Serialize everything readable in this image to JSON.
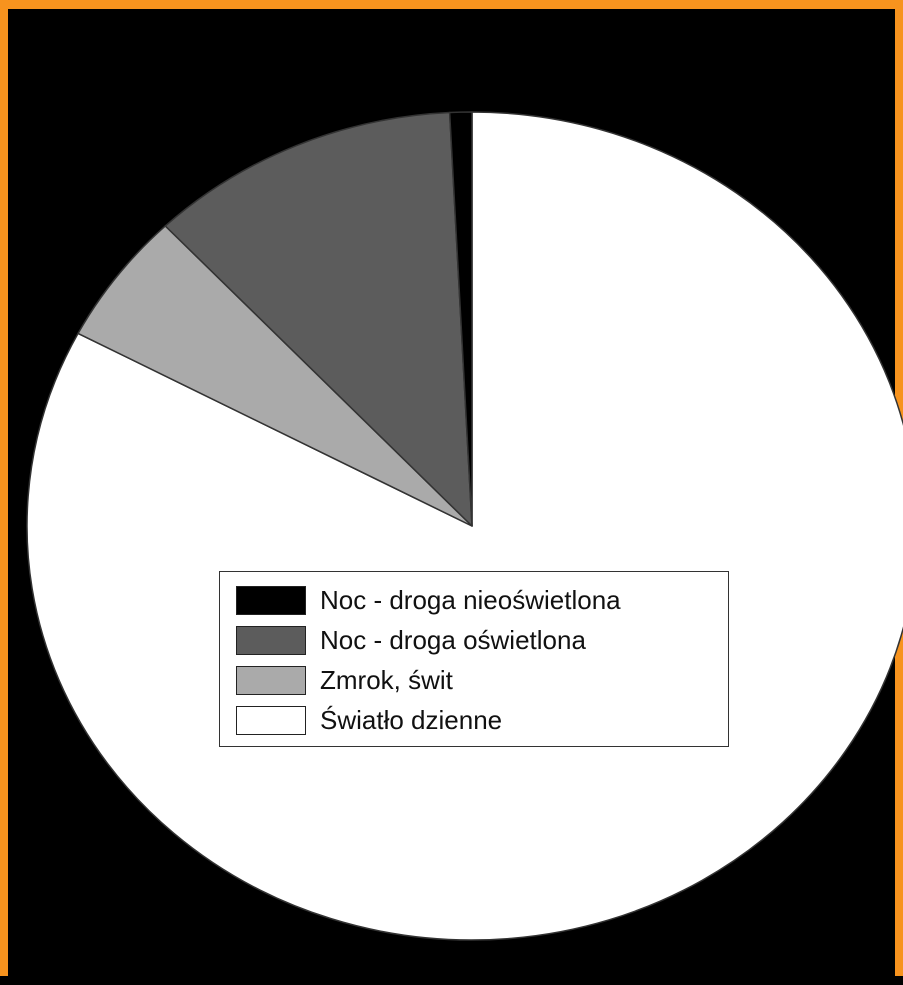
{
  "chart_data": {
    "type": "pie",
    "title": "",
    "start_angle_deg": 0,
    "direction": "clockwise",
    "legend_position": "center",
    "slices": [
      {
        "label": "Światło dzienne",
        "value": 82.7,
        "color": "#ffffff"
      },
      {
        "label": "Zmrok, świt",
        "value": 5.2,
        "color": "#aaaaaa"
      },
      {
        "label": "Noc - droga oświetlona",
        "value": 11.3,
        "color": "#5c5c5c"
      },
      {
        "label": "Noc - droga nieoświetlona",
        "value": 0.8,
        "color": "#000000"
      }
    ],
    "legend_order": [
      "Noc - droga nieoświetlona",
      "Noc - droga oświetlona",
      "Zmrok, świt",
      "Światło dzienne"
    ]
  },
  "colors": {
    "frame_border": "#f7931e",
    "background": "#000000",
    "slice_stroke": "#333333"
  }
}
